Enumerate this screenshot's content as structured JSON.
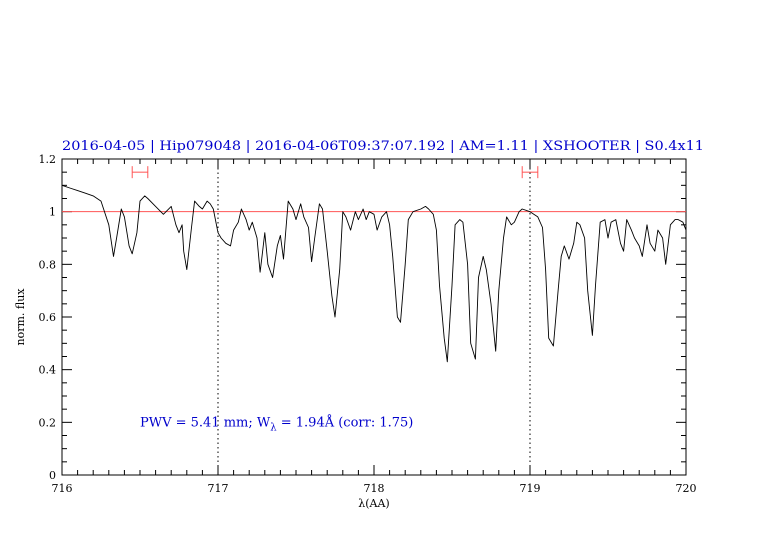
{
  "header": {
    "title": "2016-04-05 | Hip079048 | 2016-04-06T09:37:07.192 | AM=1.11 | XSHOOTER | S0.4x11",
    "color": "#0000cc"
  },
  "chart_data": {
    "type": "line",
    "xlabel": "λ(AA)",
    "ylabel": "norm. flux",
    "xlim": [
      716,
      720
    ],
    "ylim": [
      0,
      1.2
    ],
    "x_ticks": [
      "716",
      "717",
      "718",
      "719",
      "720"
    ],
    "y_ticks": [
      "0",
      "0.2",
      "0.4",
      "0.6",
      "0.8",
      "1",
      "1.2"
    ],
    "x_minor_step": 0.1,
    "y_minor_step": 0.05,
    "reference_line": {
      "y": 1.0,
      "color": "#ff5555"
    },
    "vertical_markers": [
      {
        "x": 717.0,
        "style": "dotted"
      },
      {
        "x": 719.0,
        "style": "dotted"
      }
    ],
    "ranges": [
      {
        "x0": 716.45,
        "x1": 716.55,
        "y": 1.15,
        "color": "#ff5555"
      },
      {
        "x0": 718.95,
        "x1": 719.05,
        "y": 1.15,
        "color": "#ff5555"
      }
    ],
    "annotation": {
      "prefix": "PWV = 5.41 mm; W",
      "subscript": "λ",
      "suffix": " = 1.94Å (corr: 1.75)",
      "x": 716.5,
      "y": 0.2
    },
    "series": [
      {
        "color": "#000000",
        "x": [
          716.0,
          716.05,
          716.1,
          716.15,
          716.2,
          716.25,
          716.3,
          716.33,
          716.35,
          716.38,
          716.4,
          716.43,
          716.45,
          716.48,
          716.5,
          716.53,
          716.55,
          716.6,
          716.65,
          716.7,
          716.73,
          716.75,
          716.77,
          716.78,
          716.8,
          716.83,
          716.85,
          716.88,
          716.9,
          716.93,
          716.95,
          716.97,
          717.0,
          717.02,
          717.05,
          717.08,
          717.1,
          717.13,
          717.15,
          717.18,
          717.2,
          717.22,
          717.25,
          717.27,
          717.28,
          717.3,
          717.32,
          717.35,
          717.38,
          717.4,
          717.42,
          717.45,
          717.48,
          717.5,
          717.53,
          717.55,
          717.58,
          717.6,
          717.62,
          717.65,
          717.67,
          717.7,
          717.73,
          717.75,
          717.78,
          717.8,
          717.82,
          717.85,
          717.88,
          717.9,
          717.93,
          717.95,
          717.97,
          718.0,
          718.02,
          718.05,
          718.08,
          718.1,
          718.12,
          718.15,
          718.17,
          718.2,
          718.22,
          718.25,
          718.3,
          718.33,
          718.35,
          718.38,
          718.4,
          718.42,
          718.45,
          718.47,
          718.5,
          718.52,
          718.55,
          718.57,
          718.6,
          718.62,
          718.65,
          718.67,
          718.7,
          718.72,
          718.75,
          718.78,
          718.8,
          718.83,
          718.85,
          718.88,
          718.9,
          718.93,
          718.95,
          719.0,
          719.05,
          719.08,
          719.1,
          719.12,
          719.15,
          719.18,
          719.2,
          719.22,
          719.25,
          719.28,
          719.3,
          719.32,
          719.35,
          719.37,
          719.4,
          719.42,
          719.45,
          719.48,
          719.5,
          719.52,
          719.55,
          719.58,
          719.6,
          719.62,
          719.65,
          719.67,
          719.7,
          719.72,
          719.75,
          719.77,
          719.8,
          719.82,
          719.85,
          719.87,
          719.9,
          719.93,
          719.95,
          719.98,
          720.0
        ],
        "y": [
          1.1,
          1.09,
          1.08,
          1.07,
          1.06,
          1.04,
          0.95,
          0.83,
          0.9,
          1.01,
          0.98,
          0.87,
          0.84,
          0.92,
          1.04,
          1.06,
          1.05,
          1.02,
          0.99,
          1.02,
          0.95,
          0.92,
          0.95,
          0.85,
          0.78,
          0.94,
          1.04,
          1.02,
          1.01,
          1.04,
          1.03,
          1.01,
          0.92,
          0.9,
          0.88,
          0.87,
          0.93,
          0.96,
          1.01,
          0.97,
          0.93,
          0.96,
          0.9,
          0.77,
          0.82,
          0.92,
          0.8,
          0.75,
          0.87,
          0.91,
          0.82,
          1.04,
          1.01,
          0.97,
          1.03,
          0.98,
          0.94,
          0.81,
          0.9,
          1.03,
          1.01,
          0.85,
          0.68,
          0.6,
          0.78,
          1.0,
          0.98,
          0.93,
          1.0,
          0.97,
          1.01,
          0.97,
          1.0,
          0.99,
          0.93,
          0.98,
          1.0,
          0.95,
          0.83,
          0.6,
          0.58,
          0.8,
          0.97,
          1.0,
          1.01,
          1.02,
          1.01,
          0.99,
          0.93,
          0.72,
          0.52,
          0.43,
          0.72,
          0.95,
          0.97,
          0.96,
          0.8,
          0.5,
          0.44,
          0.75,
          0.83,
          0.78,
          0.65,
          0.47,
          0.7,
          0.9,
          0.98,
          0.95,
          0.96,
          1.0,
          1.01,
          1.0,
          0.98,
          0.94,
          0.78,
          0.52,
          0.49,
          0.7,
          0.83,
          0.87,
          0.82,
          0.88,
          0.96,
          0.95,
          0.9,
          0.7,
          0.53,
          0.72,
          0.96,
          0.97,
          0.9,
          0.96,
          0.97,
          0.88,
          0.85,
          0.97,
          0.93,
          0.9,
          0.87,
          0.83,
          0.95,
          0.88,
          0.85,
          0.93,
          0.9,
          0.8,
          0.95,
          0.97,
          0.97,
          0.96,
          0.93
        ]
      }
    ]
  }
}
